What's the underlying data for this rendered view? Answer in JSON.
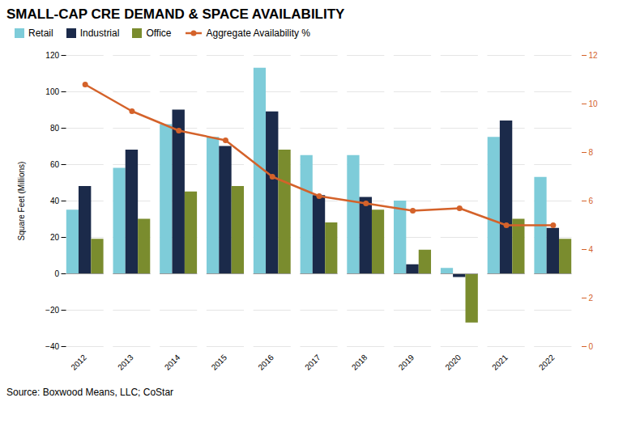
{
  "chart_data": {
    "type": "bar",
    "title": "SMALL-CAP CRE DEMAND & SPACE AVAILABILITY",
    "categories": [
      "2012",
      "2013",
      "2014",
      "2015",
      "2016",
      "2017",
      "2018",
      "2019",
      "2020",
      "2021",
      "2022"
    ],
    "series": [
      {
        "name": "Retail",
        "color": "#7eccd9",
        "values": [
          35,
          58,
          82,
          75,
          113,
          65,
          65,
          40,
          3,
          75,
          53
        ]
      },
      {
        "name": "Industrial",
        "color": "#1b2a4a",
        "values": [
          48,
          68,
          90,
          70,
          89,
          43,
          42,
          5,
          -2,
          84,
          25
        ]
      },
      {
        "name": "Office",
        "color": "#7a8c2e",
        "values": [
          19,
          30,
          45,
          48,
          68,
          28,
          35,
          13,
          -27,
          30,
          19
        ]
      },
      {
        "name": "Aggregate Availability %",
        "color": "#d4622a",
        "type": "line",
        "marker": "circle",
        "axis": "y2",
        "values": [
          10.8,
          9.7,
          8.9,
          8.5,
          7.0,
          6.2,
          5.9,
          5.6,
          5.7,
          5.0,
          5.0
        ]
      }
    ],
    "ylabel": "Square Feet (Millions)",
    "ylim": [
      -40,
      120
    ],
    "yticks": [
      -40,
      -20,
      0,
      20,
      40,
      60,
      80,
      100,
      120
    ],
    "y2lim": [
      0,
      12
    ],
    "y2ticks": [
      0,
      2,
      4,
      6,
      8,
      10,
      12
    ],
    "grid": true,
    "legend": "top",
    "annotations": [
      "Source: Boxwood Means, LLC; CoStar"
    ]
  }
}
